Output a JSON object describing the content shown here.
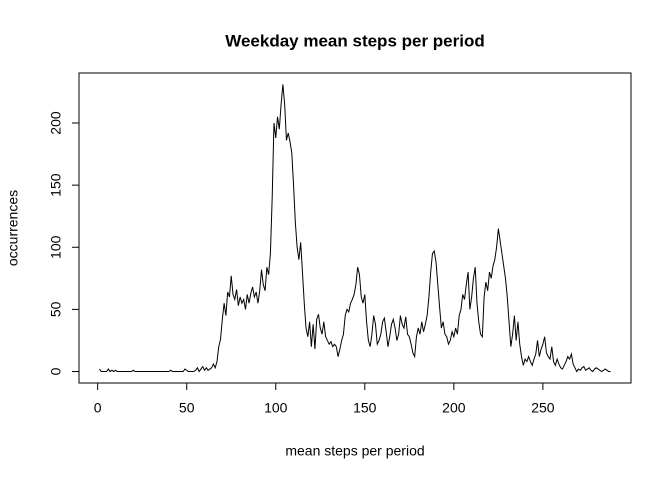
{
  "chart_data": {
    "type": "line",
    "title": "Weekday mean steps per period",
    "xlabel": "mean steps per period",
    "ylabel": "occurrences",
    "color": "#000000",
    "x": [
      1,
      2,
      3,
      4,
      5,
      6,
      7,
      8,
      9,
      10,
      11,
      12,
      13,
      14,
      15,
      16,
      17,
      18,
      19,
      20,
      21,
      22,
      23,
      24,
      25,
      26,
      27,
      28,
      29,
      30,
      31,
      32,
      33,
      34,
      35,
      36,
      37,
      38,
      39,
      40,
      41,
      42,
      43,
      44,
      45,
      46,
      47,
      48,
      49,
      50,
      51,
      52,
      53,
      54,
      55,
      56,
      57,
      58,
      59,
      60,
      61,
      62,
      63,
      64,
      65,
      66,
      67,
      68,
      69,
      70,
      71,
      72,
      73,
      74,
      75,
      76,
      77,
      78,
      79,
      80,
      81,
      82,
      83,
      84,
      85,
      86,
      87,
      88,
      89,
      90,
      91,
      92,
      93,
      94,
      95,
      96,
      97,
      98,
      99,
      100,
      101,
      102,
      103,
      104,
      105,
      106,
      107,
      108,
      109,
      110,
      111,
      112,
      113,
      114,
      115,
      116,
      117,
      118,
      119,
      120,
      121,
      122,
      123,
      124,
      125,
      126,
      127,
      128,
      129,
      130,
      131,
      132,
      133,
      134,
      135,
      136,
      137,
      138,
      139,
      140,
      141,
      142,
      143,
      144,
      145,
      146,
      147,
      148,
      149,
      150,
      151,
      152,
      153,
      154,
      155,
      156,
      157,
      158,
      159,
      160,
      161,
      162,
      163,
      164,
      165,
      166,
      167,
      168,
      169,
      170,
      171,
      172,
      173,
      174,
      175,
      176,
      177,
      178,
      179,
      180,
      181,
      182,
      183,
      184,
      185,
      186,
      187,
      188,
      189,
      190,
      191,
      192,
      193,
      194,
      195,
      196,
      197,
      198,
      199,
      200,
      201,
      202,
      203,
      204,
      205,
      206,
      207,
      208,
      209,
      210,
      211,
      212,
      213,
      214,
      215,
      216,
      217,
      218,
      219,
      220,
      221,
      222,
      223,
      224,
      225,
      226,
      227,
      228,
      229,
      230,
      231,
      232,
      233,
      234,
      235,
      236,
      237,
      238,
      239,
      240,
      241,
      242,
      243,
      244,
      245,
      246,
      247,
      248,
      249,
      250,
      251,
      252,
      253,
      254,
      255,
      256,
      257,
      258,
      259,
      260,
      261,
      262,
      263,
      264,
      265,
      266,
      267,
      268,
      269,
      270,
      271,
      272,
      273,
      274,
      275,
      276,
      277,
      278,
      279,
      280,
      281,
      282,
      283,
      284,
      285,
      286,
      287,
      288
    ],
    "values": [
      2,
      0,
      0,
      0,
      0,
      2,
      0,
      1,
      0,
      1,
      0,
      0,
      0,
      0,
      0,
      0,
      0,
      0,
      0,
      1,
      0,
      0,
      0,
      0,
      0,
      0,
      0,
      0,
      0,
      0,
      0,
      0,
      0,
      0,
      0,
      0,
      0,
      0,
      0,
      0,
      1,
      0,
      0,
      0,
      0,
      0,
      0,
      0,
      2,
      1,
      0,
      0,
      0,
      0,
      1,
      3,
      0,
      2,
      4,
      1,
      3,
      1,
      2,
      3,
      6,
      3,
      8,
      20,
      26,
      42,
      55,
      45,
      64,
      60,
      77,
      62,
      58,
      66,
      53,
      60,
      55,
      58,
      50,
      62,
      55,
      63,
      68,
      60,
      64,
      55,
      65,
      82,
      70,
      65,
      84,
      78,
      95,
      140,
      200,
      188,
      205,
      195,
      215,
      231,
      215,
      186,
      192,
      185,
      176,
      150,
      120,
      100,
      90,
      104,
      80,
      55,
      35,
      28,
      40,
      20,
      38,
      18,
      42,
      46,
      35,
      30,
      40,
      28,
      25,
      22,
      24,
      20,
      22,
      20,
      12,
      18,
      25,
      30,
      45,
      50,
      48,
      55,
      58,
      62,
      70,
      84,
      78,
      60,
      55,
      62,
      40,
      25,
      20,
      30,
      45,
      38,
      22,
      25,
      30,
      40,
      43,
      32,
      20,
      28,
      38,
      42,
      35,
      25,
      30,
      45,
      38,
      35,
      44,
      30,
      28,
      22,
      15,
      12,
      28,
      35,
      30,
      40,
      32,
      38,
      45,
      60,
      80,
      95,
      97,
      88,
      70,
      52,
      35,
      40,
      30,
      28,
      22,
      25,
      32,
      28,
      35,
      30,
      45,
      50,
      62,
      58,
      70,
      80,
      50,
      60,
      75,
      84,
      55,
      40,
      30,
      28,
      60,
      72,
      65,
      80,
      75,
      85,
      90,
      100,
      115,
      105,
      95,
      85,
      75,
      60,
      40,
      20,
      30,
      45,
      25,
      40,
      22,
      12,
      5,
      10,
      8,
      12,
      8,
      5,
      10,
      14,
      25,
      12,
      18,
      22,
      28,
      15,
      12,
      10,
      20,
      8,
      5,
      10,
      6,
      3,
      2,
      5,
      8,
      12,
      10,
      14,
      6,
      3,
      0,
      2,
      1,
      3,
      4,
      1,
      2,
      3,
      1,
      0,
      2,
      3,
      2,
      1,
      0,
      1,
      2,
      1,
      0,
      0
    ],
    "xlim": [
      -10.48,
      299.48
    ],
    "ylim": [
      -9.24,
      240.24
    ],
    "xticks": [
      0,
      50,
      100,
      150,
      200,
      250
    ],
    "yticks": [
      0,
      50,
      100,
      150,
      200
    ]
  }
}
